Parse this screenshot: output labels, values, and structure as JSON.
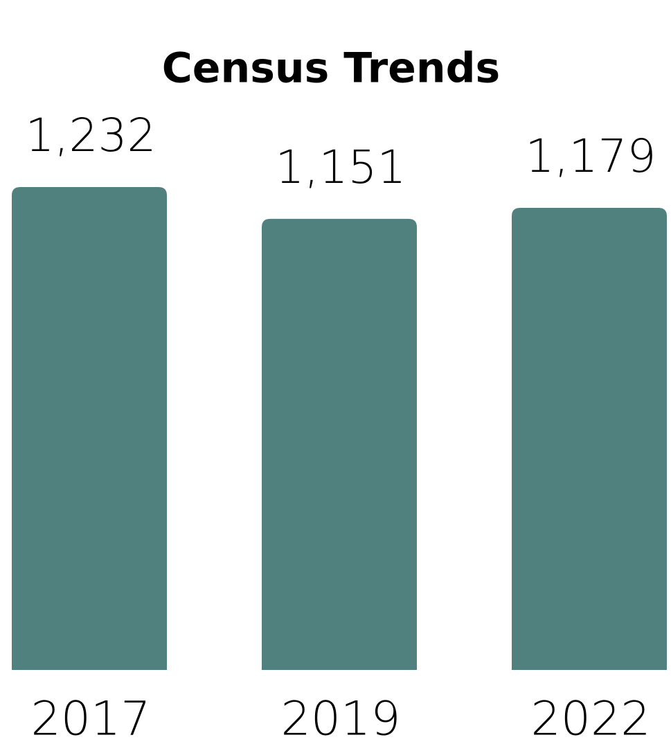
{
  "chart_data": {
    "type": "bar",
    "title": "Census Trends",
    "categories": [
      "2017",
      "2019",
      "2022"
    ],
    "values": [
      1232,
      1151,
      1179
    ],
    "value_labels": [
      "1,232",
      "1,151",
      "1,179"
    ],
    "color": "#50817f"
  }
}
